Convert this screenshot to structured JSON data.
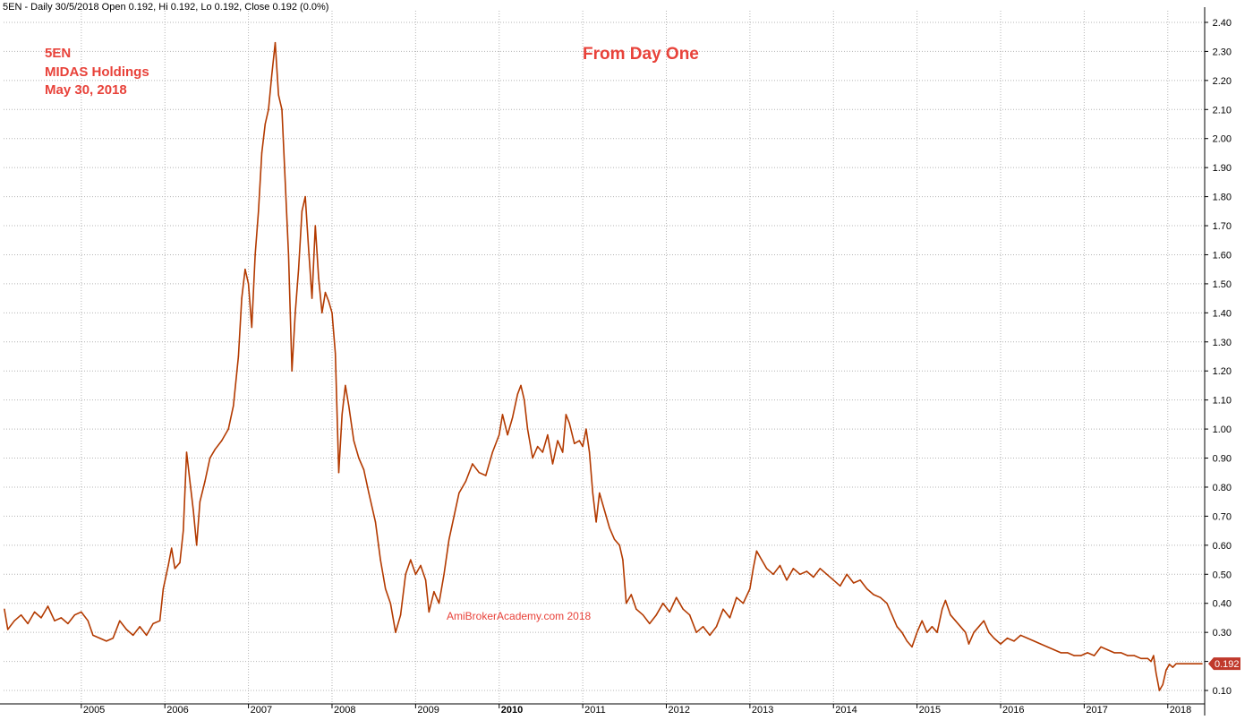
{
  "header": {
    "text": "5EN - Daily 30/5/2018 Open 0.192, Hi 0.192, Lo 0.192, Close 0.192 (0.0%)"
  },
  "annotations": {
    "ticker": "5EN",
    "company": "MIDAS Holdings",
    "date": "May 30, 2018",
    "headline": "From Day One",
    "watermark": "AmiBrokerAcademy.com 2018"
  },
  "last_price_label": "0.192",
  "colors": {
    "price_line": "#b33a00",
    "annotation": "#e8423a",
    "last_price_badge": "#c0392b"
  },
  "chart_data": {
    "type": "line",
    "title": "",
    "xlabel": "",
    "ylabel": "",
    "y_scale": "linear",
    "ylim": [
      0.06,
      2.44
    ],
    "xlim": [
      2004.07,
      2018.42
    ],
    "grid": true,
    "y_ticks": [
      "0.10",
      "0.20",
      "0.30",
      "0.40",
      "0.50",
      "0.60",
      "0.70",
      "0.80",
      "0.90",
      "1.00",
      "1.10",
      "1.20",
      "1.30",
      "1.40",
      "1.50",
      "1.60",
      "1.70",
      "1.80",
      "1.90",
      "2.00",
      "2.10",
      "2.20",
      "2.30",
      "2.40"
    ],
    "x_ticks": [
      {
        "label": "2005",
        "x": 2005.0,
        "bold": false
      },
      {
        "label": "2006",
        "x": 2006.0,
        "bold": false
      },
      {
        "label": "2007",
        "x": 2007.0,
        "bold": false
      },
      {
        "label": "2008",
        "x": 2008.0,
        "bold": false
      },
      {
        "label": "2009",
        "x": 2009.0,
        "bold": false
      },
      {
        "label": "2010",
        "x": 2010.0,
        "bold": true
      },
      {
        "label": "2011",
        "x": 2011.0,
        "bold": false
      },
      {
        "label": "2012",
        "x": 2012.0,
        "bold": false
      },
      {
        "label": "2013",
        "x": 2013.0,
        "bold": false
      },
      {
        "label": "2014",
        "x": 2014.0,
        "bold": false
      },
      {
        "label": "2015",
        "x": 2015.0,
        "bold": false
      },
      {
        "label": "2016",
        "x": 2016.0,
        "bold": false
      },
      {
        "label": "2017",
        "x": 2017.0,
        "bold": false
      },
      {
        "label": "2018",
        "x": 2018.0,
        "bold": false
      }
    ],
    "series": [
      {
        "values": [
          [
            2004.08,
            0.38
          ],
          [
            2004.12,
            0.31
          ],
          [
            2004.2,
            0.34
          ],
          [
            2004.28,
            0.36
          ],
          [
            2004.36,
            0.33
          ],
          [
            2004.44,
            0.37
          ],
          [
            2004.52,
            0.35
          ],
          [
            2004.6,
            0.39
          ],
          [
            2004.68,
            0.34
          ],
          [
            2004.76,
            0.35
          ],
          [
            2004.84,
            0.33
          ],
          [
            2004.92,
            0.36
          ],
          [
            2005.0,
            0.37
          ],
          [
            2005.08,
            0.34
          ],
          [
            2005.14,
            0.29
          ],
          [
            2005.22,
            0.28
          ],
          [
            2005.3,
            0.27
          ],
          [
            2005.38,
            0.28
          ],
          [
            2005.46,
            0.34
          ],
          [
            2005.54,
            0.31
          ],
          [
            2005.62,
            0.29
          ],
          [
            2005.7,
            0.32
          ],
          [
            2005.78,
            0.29
          ],
          [
            2005.86,
            0.33
          ],
          [
            2005.94,
            0.34
          ],
          [
            2005.98,
            0.45
          ],
          [
            2006.04,
            0.53
          ],
          [
            2006.08,
            0.59
          ],
          [
            2006.12,
            0.52
          ],
          [
            2006.18,
            0.54
          ],
          [
            2006.22,
            0.65
          ],
          [
            2006.26,
            0.92
          ],
          [
            2006.3,
            0.82
          ],
          [
            2006.34,
            0.72
          ],
          [
            2006.38,
            0.6
          ],
          [
            2006.42,
            0.75
          ],
          [
            2006.48,
            0.82
          ],
          [
            2006.54,
            0.9
          ],
          [
            2006.6,
            0.93
          ],
          [
            2006.68,
            0.96
          ],
          [
            2006.76,
            1.0
          ],
          [
            2006.82,
            1.08
          ],
          [
            2006.88,
            1.25
          ],
          [
            2006.92,
            1.45
          ],
          [
            2006.96,
            1.55
          ],
          [
            2007.0,
            1.5
          ],
          [
            2007.04,
            1.35
          ],
          [
            2007.08,
            1.6
          ],
          [
            2007.12,
            1.75
          ],
          [
            2007.16,
            1.95
          ],
          [
            2007.2,
            2.05
          ],
          [
            2007.24,
            2.1
          ],
          [
            2007.28,
            2.22
          ],
          [
            2007.32,
            2.33
          ],
          [
            2007.36,
            2.15
          ],
          [
            2007.4,
            2.1
          ],
          [
            2007.44,
            1.85
          ],
          [
            2007.48,
            1.6
          ],
          [
            2007.52,
            1.2
          ],
          [
            2007.56,
            1.4
          ],
          [
            2007.6,
            1.55
          ],
          [
            2007.64,
            1.75
          ],
          [
            2007.68,
            1.8
          ],
          [
            2007.72,
            1.62
          ],
          [
            2007.76,
            1.45
          ],
          [
            2007.8,
            1.7
          ],
          [
            2007.84,
            1.52
          ],
          [
            2007.88,
            1.4
          ],
          [
            2007.92,
            1.47
          ],
          [
            2007.96,
            1.44
          ],
          [
            2008.0,
            1.4
          ],
          [
            2008.04,
            1.26
          ],
          [
            2008.08,
            0.85
          ],
          [
            2008.12,
            1.05
          ],
          [
            2008.16,
            1.15
          ],
          [
            2008.2,
            1.08
          ],
          [
            2008.26,
            0.96
          ],
          [
            2008.32,
            0.9
          ],
          [
            2008.38,
            0.86
          ],
          [
            2008.44,
            0.78
          ],
          [
            2008.52,
            0.68
          ],
          [
            2008.58,
            0.55
          ],
          [
            2008.64,
            0.45
          ],
          [
            2008.7,
            0.4
          ],
          [
            2008.76,
            0.3
          ],
          [
            2008.82,
            0.36
          ],
          [
            2008.88,
            0.5
          ],
          [
            2008.94,
            0.55
          ],
          [
            2009.0,
            0.5
          ],
          [
            2009.06,
            0.53
          ],
          [
            2009.12,
            0.48
          ],
          [
            2009.16,
            0.37
          ],
          [
            2009.22,
            0.44
          ],
          [
            2009.28,
            0.4
          ],
          [
            2009.34,
            0.5
          ],
          [
            2009.4,
            0.62
          ],
          [
            2009.46,
            0.7
          ],
          [
            2009.52,
            0.78
          ],
          [
            2009.6,
            0.82
          ],
          [
            2009.68,
            0.88
          ],
          [
            2009.76,
            0.85
          ],
          [
            2009.84,
            0.84
          ],
          [
            2009.92,
            0.92
          ],
          [
            2010.0,
            0.98
          ],
          [
            2010.04,
            1.05
          ],
          [
            2010.1,
            0.98
          ],
          [
            2010.16,
            1.04
          ],
          [
            2010.22,
            1.12
          ],
          [
            2010.26,
            1.15
          ],
          [
            2010.3,
            1.1
          ],
          [
            2010.34,
            1.0
          ],
          [
            2010.4,
            0.9
          ],
          [
            2010.46,
            0.94
          ],
          [
            2010.52,
            0.92
          ],
          [
            2010.58,
            0.98
          ],
          [
            2010.64,
            0.88
          ],
          [
            2010.7,
            0.96
          ],
          [
            2010.76,
            0.92
          ],
          [
            2010.8,
            1.05
          ],
          [
            2010.84,
            1.02
          ],
          [
            2010.9,
            0.95
          ],
          [
            2010.96,
            0.96
          ],
          [
            2011.0,
            0.94
          ],
          [
            2011.04,
            1.0
          ],
          [
            2011.08,
            0.92
          ],
          [
            2011.12,
            0.78
          ],
          [
            2011.16,
            0.68
          ],
          [
            2011.2,
            0.78
          ],
          [
            2011.26,
            0.72
          ],
          [
            2011.32,
            0.66
          ],
          [
            2011.38,
            0.62
          ],
          [
            2011.44,
            0.6
          ],
          [
            2011.48,
            0.55
          ],
          [
            2011.52,
            0.4
          ],
          [
            2011.58,
            0.43
          ],
          [
            2011.64,
            0.38
          ],
          [
            2011.72,
            0.36
          ],
          [
            2011.8,
            0.33
          ],
          [
            2011.88,
            0.36
          ],
          [
            2011.96,
            0.4
          ],
          [
            2012.04,
            0.37
          ],
          [
            2012.12,
            0.42
          ],
          [
            2012.2,
            0.38
          ],
          [
            2012.28,
            0.36
          ],
          [
            2012.36,
            0.3
          ],
          [
            2012.44,
            0.32
          ],
          [
            2012.52,
            0.29
          ],
          [
            2012.6,
            0.32
          ],
          [
            2012.68,
            0.38
          ],
          [
            2012.76,
            0.35
          ],
          [
            2012.84,
            0.42
          ],
          [
            2012.92,
            0.4
          ],
          [
            2013.0,
            0.45
          ],
          [
            2013.04,
            0.52
          ],
          [
            2013.08,
            0.58
          ],
          [
            2013.14,
            0.55
          ],
          [
            2013.2,
            0.52
          ],
          [
            2013.28,
            0.5
          ],
          [
            2013.36,
            0.53
          ],
          [
            2013.44,
            0.48
          ],
          [
            2013.52,
            0.52
          ],
          [
            2013.6,
            0.5
          ],
          [
            2013.68,
            0.51
          ],
          [
            2013.76,
            0.49
          ],
          [
            2013.84,
            0.52
          ],
          [
            2013.92,
            0.5
          ],
          [
            2014.0,
            0.48
          ],
          [
            2014.08,
            0.46
          ],
          [
            2014.16,
            0.5
          ],
          [
            2014.24,
            0.47
          ],
          [
            2014.32,
            0.48
          ],
          [
            2014.4,
            0.45
          ],
          [
            2014.48,
            0.43
          ],
          [
            2014.56,
            0.42
          ],
          [
            2014.64,
            0.4
          ],
          [
            2014.7,
            0.36
          ],
          [
            2014.76,
            0.32
          ],
          [
            2014.82,
            0.3
          ],
          [
            2014.88,
            0.27
          ],
          [
            2014.94,
            0.25
          ],
          [
            2015.0,
            0.3
          ],
          [
            2015.06,
            0.34
          ],
          [
            2015.12,
            0.3
          ],
          [
            2015.18,
            0.32
          ],
          [
            2015.24,
            0.3
          ],
          [
            2015.3,
            0.38
          ],
          [
            2015.34,
            0.41
          ],
          [
            2015.4,
            0.36
          ],
          [
            2015.46,
            0.34
          ],
          [
            2015.52,
            0.32
          ],
          [
            2015.58,
            0.3
          ],
          [
            2015.62,
            0.26
          ],
          [
            2015.68,
            0.3
          ],
          [
            2015.74,
            0.32
          ],
          [
            2015.8,
            0.34
          ],
          [
            2015.86,
            0.3
          ],
          [
            2015.92,
            0.28
          ],
          [
            2016.0,
            0.26
          ],
          [
            2016.08,
            0.28
          ],
          [
            2016.16,
            0.27
          ],
          [
            2016.24,
            0.29
          ],
          [
            2016.32,
            0.28
          ],
          [
            2016.4,
            0.27
          ],
          [
            2016.48,
            0.26
          ],
          [
            2016.56,
            0.25
          ],
          [
            2016.64,
            0.24
          ],
          [
            2016.72,
            0.23
          ],
          [
            2016.8,
            0.23
          ],
          [
            2016.88,
            0.22
          ],
          [
            2016.96,
            0.22
          ],
          [
            2017.04,
            0.23
          ],
          [
            2017.12,
            0.22
          ],
          [
            2017.2,
            0.25
          ],
          [
            2017.28,
            0.24
          ],
          [
            2017.36,
            0.23
          ],
          [
            2017.44,
            0.23
          ],
          [
            2017.52,
            0.22
          ],
          [
            2017.6,
            0.22
          ],
          [
            2017.68,
            0.21
          ],
          [
            2017.76,
            0.21
          ],
          [
            2017.8,
            0.2
          ],
          [
            2017.83,
            0.22
          ],
          [
            2017.86,
            0.16
          ],
          [
            2017.9,
            0.1
          ],
          [
            2017.94,
            0.12
          ],
          [
            2017.98,
            0.17
          ],
          [
            2018.02,
            0.19
          ],
          [
            2018.06,
            0.18
          ],
          [
            2018.1,
            0.192
          ],
          [
            2018.2,
            0.192
          ],
          [
            2018.3,
            0.192
          ],
          [
            2018.41,
            0.192
          ]
        ]
      }
    ]
  }
}
